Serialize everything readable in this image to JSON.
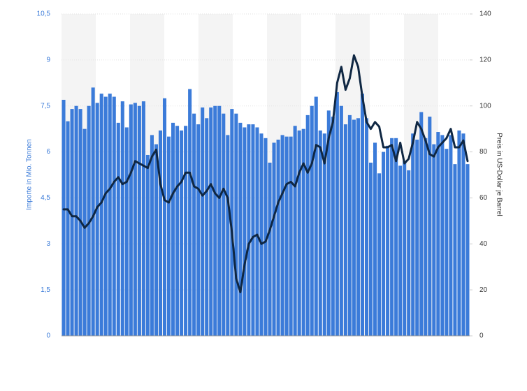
{
  "chart_data": {
    "type": "bar_line",
    "y_label": "Importe in Mio. Tonnen",
    "y2_label": "Preis in US-Dollar je Barrel",
    "ylim": [
      0,
      10.5
    ],
    "yticks": [
      0,
      {
        "value": 1.5,
        "label": "1,5"
      },
      3,
      {
        "value": 4.5,
        "label": "4,5"
      },
      6,
      {
        "value": 7.5,
        "label": "7,5"
      },
      9,
      {
        "value": 10.5,
        "label": "10,5"
      }
    ],
    "y2lim": [
      0,
      140
    ],
    "y2ticks": [
      0,
      20,
      40,
      60,
      80,
      100,
      120,
      140
    ],
    "series": [
      {
        "color": "#3b7bd9",
        "values": [
          7.7,
          7.0,
          7.4,
          7.5,
          7.4,
          6.75,
          7.5,
          8.1,
          7.6,
          7.9,
          7.8,
          7.9,
          7.8,
          6.95,
          7.65,
          6.8,
          7.55,
          7.6,
          7.5,
          7.65,
          5.9,
          6.55,
          6.25,
          6.7,
          7.75,
          6.5,
          6.95,
          6.85,
          6.7,
          6.85,
          8.05,
          7.25,
          6.9,
          7.45,
          7.1,
          7.45,
          7.5,
          7.5,
          7.25,
          6.55,
          7.4,
          7.25,
          6.95,
          6.8,
          6.9,
          6.9,
          6.8,
          6.6,
          6.45,
          5.65,
          6.3,
          6.4,
          6.55,
          6.5,
          6.5,
          6.85,
          6.7,
          6.75,
          7.2,
          7.5,
          7.8,
          6.7,
          6.6,
          7.35,
          7.15,
          7.95,
          7.5,
          6.9,
          7.2,
          7.05,
          7.1,
          7.9,
          7.1,
          5.65,
          6.3,
          5.3,
          6.0,
          6.2,
          6.45,
          6.45,
          5.55,
          5.7,
          5.4,
          6.6,
          6.4,
          7.3,
          6.45,
          7.15,
          6.25,
          6.65,
          6.55,
          6.1,
          6.55,
          5.6,
          6.7,
          6.6,
          5.6
        ]
      },
      {
        "color": "#0f2743",
        "axis": "y2",
        "values": [
          55,
          55,
          52,
          52,
          50,
          47,
          49,
          52,
          56,
          58,
          62,
          64,
          67,
          69,
          66,
          67,
          71,
          76,
          75,
          74,
          73,
          78,
          81,
          66,
          59,
          58,
          62,
          65,
          67,
          71,
          71,
          65,
          64,
          61,
          63,
          66,
          62,
          60,
          64,
          60,
          45,
          25,
          19,
          31,
          40,
          43,
          44,
          40,
          41,
          46,
          52,
          58,
          62,
          66,
          67,
          65,
          71,
          75,
          71,
          75,
          83,
          82,
          75,
          86,
          93,
          110,
          117,
          107,
          112,
          122,
          117,
          104,
          93,
          90,
          93,
          91,
          82,
          82,
          83,
          76,
          84,
          75,
          77,
          84,
          93,
          90,
          85,
          79,
          78,
          82,
          84,
          86,
          90,
          82,
          82,
          85,
          76
        ]
      }
    ]
  }
}
